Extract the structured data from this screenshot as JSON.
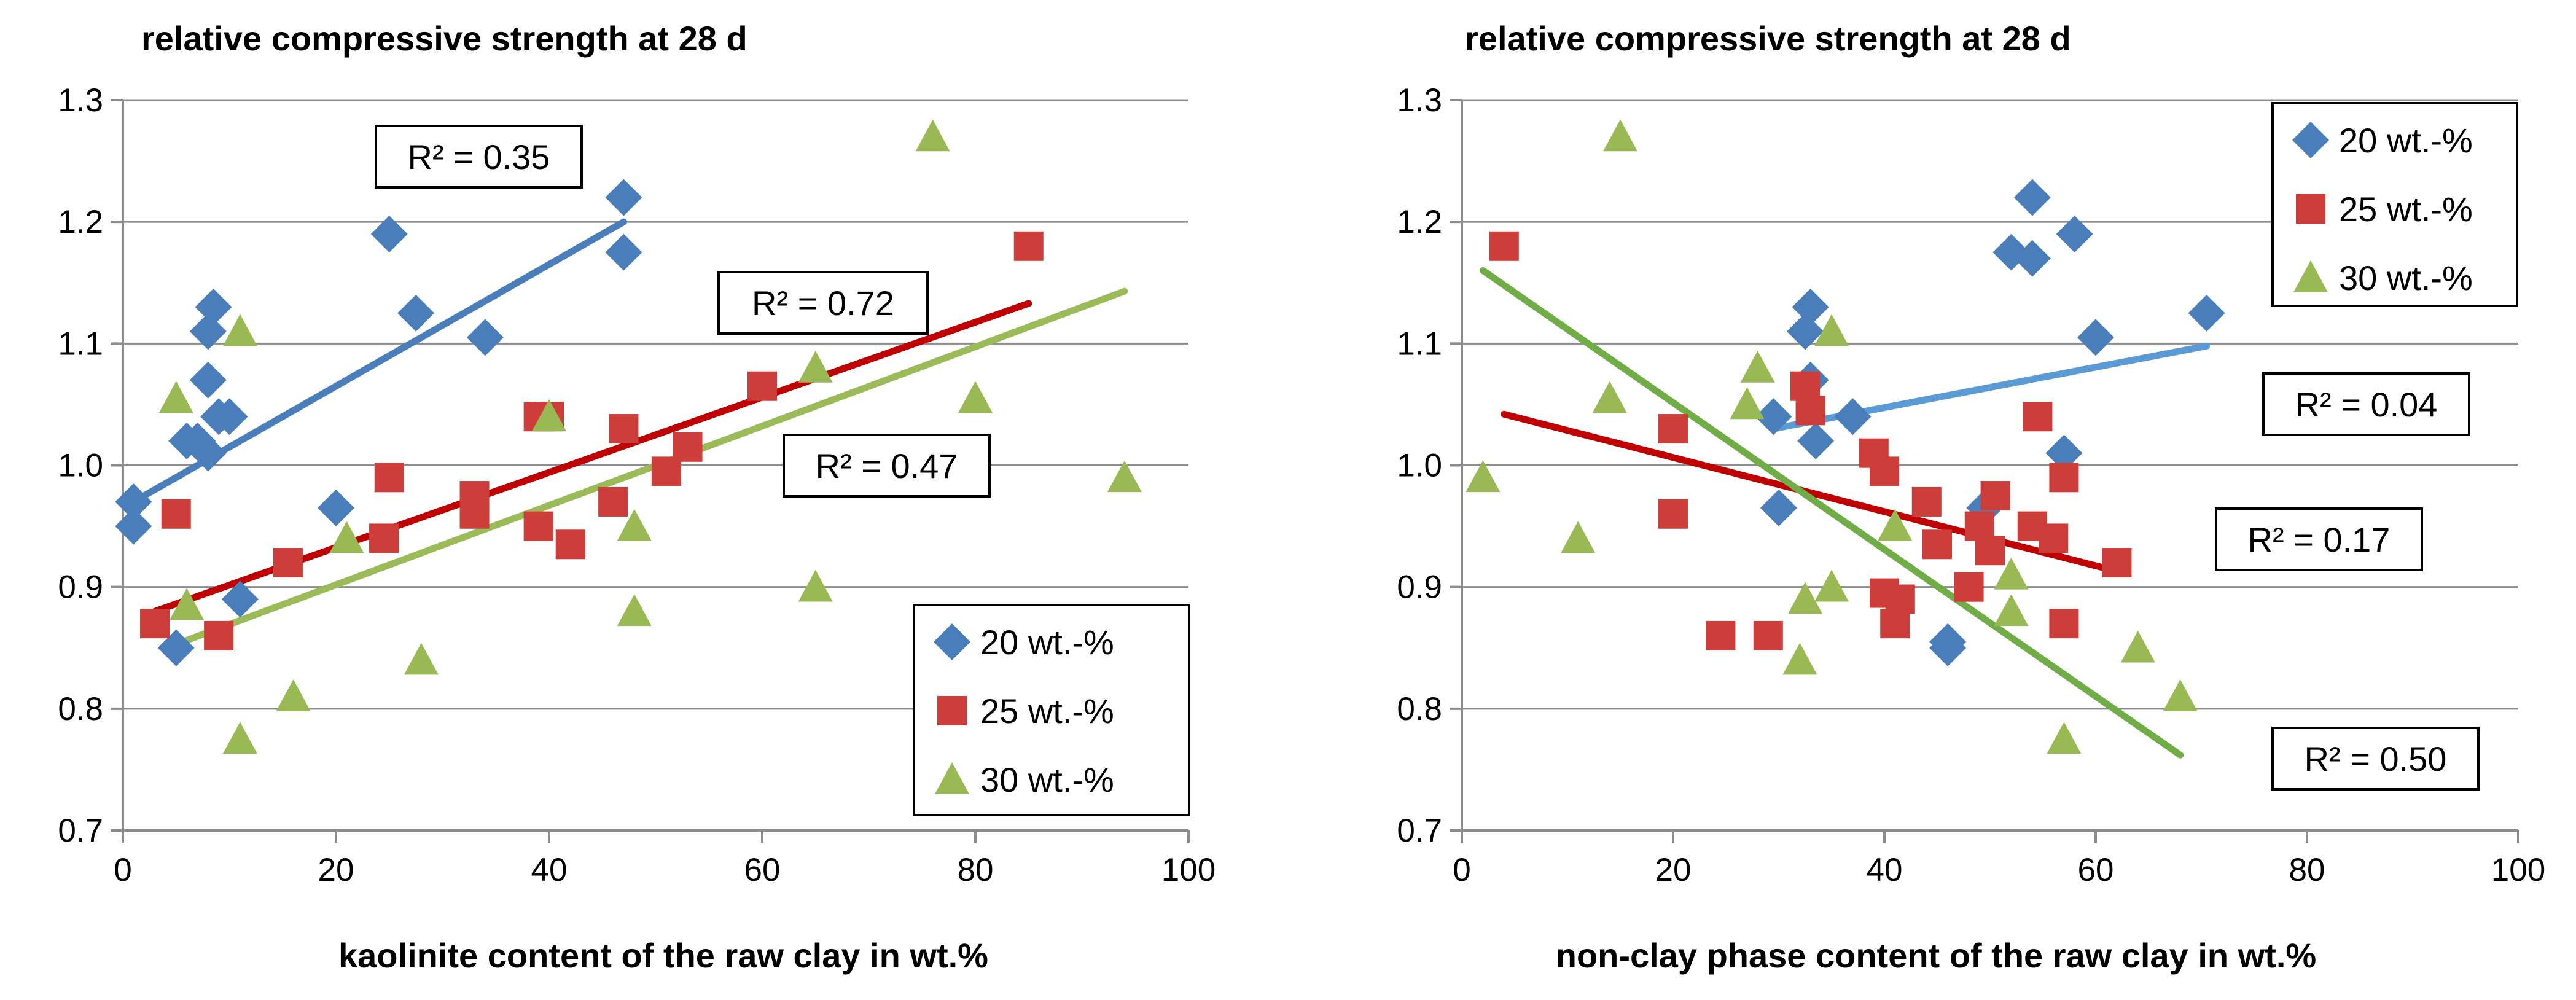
{
  "chart_data": [
    {
      "type": "scatter",
      "title": "relative compressive strength at 28 d",
      "xlabel": "kaolinite content of the raw clay in wt.%",
      "ylabel": "",
      "xlim": [
        0,
        100
      ],
      "ylim": [
        0.7,
        1.3
      ],
      "xticks": [
        "0",
        "20",
        "40",
        "60",
        "80",
        "100"
      ],
      "yticks": [
        "0.7",
        "0.8",
        "0.9",
        "1.0",
        "1.1",
        "1.2",
        "1.3"
      ],
      "grid": "horizontal",
      "legend_position": "bottom-right",
      "series": [
        {
          "name": "20 wt.-%",
          "color": "#4a7ebb",
          "marker": "diamond",
          "points": [
            [
              1,
              0.95
            ],
            [
              1,
              0.97
            ],
            [
              5,
              0.85
            ],
            [
              6,
              1.02
            ],
            [
              7,
              1.02
            ],
            [
              8,
              1.01
            ],
            [
              8,
              1.07
            ],
            [
              8,
              1.11
            ],
            [
              8.5,
              1.13
            ],
            [
              9,
              1.04
            ],
            [
              10,
              1.04
            ],
            [
              11,
              0.89
            ],
            [
              20,
              0.965
            ],
            [
              25,
              1.19
            ],
            [
              27.5,
              1.125
            ],
            [
              34,
              1.105
            ],
            [
              47,
              1.175
            ],
            [
              47,
              1.22
            ]
          ],
          "trend": {
            "x": [
              1,
              47
            ],
            "y": [
              0.97,
              1.2
            ],
            "label": "R² = 0.35",
            "color": "#4a7ebb"
          }
        },
        {
          "name": "25 wt.-%",
          "color": "#cd3e3a",
          "marker": "square",
          "points": [
            [
              3,
              0.87
            ],
            [
              5,
              0.96
            ],
            [
              9,
              0.86
            ],
            [
              15.5,
              0.92
            ],
            [
              24.5,
              0.94
            ],
            [
              25,
              0.99
            ],
            [
              33,
              0.96
            ],
            [
              33,
              0.975
            ],
            [
              39,
              1.04
            ],
            [
              39,
              0.95
            ],
            [
              40,
              1.04
            ],
            [
              42,
              0.935
            ],
            [
              46,
              0.97
            ],
            [
              47,
              1.03
            ],
            [
              51,
              0.995
            ],
            [
              53,
              1.015
            ],
            [
              60,
              1.065
            ],
            [
              85,
              1.18
            ]
          ],
          "trend": {
            "x": [
              3,
              85
            ],
            "y": [
              0.88,
              1.133
            ],
            "label": "R² = 0.72",
            "color": "#c00000"
          }
        },
        {
          "name": "30 wt.-%",
          "color": "#98b954",
          "marker": "triangle",
          "points": [
            [
              5,
              1.055
            ],
            [
              6,
              0.885
            ],
            [
              11,
              0.775
            ],
            [
              11,
              1.11
            ],
            [
              16,
              0.81
            ],
            [
              21,
              0.94
            ],
            [
              28,
              0.84
            ],
            [
              40,
              1.04
            ],
            [
              48,
              0.95
            ],
            [
              48,
              0.88
            ],
            [
              65,
              0.9
            ],
            [
              65,
              1.08
            ],
            [
              76,
              1.27
            ],
            [
              80,
              1.055
            ],
            [
              94,
              0.99
            ]
          ],
          "trend": {
            "x": [
              5,
              94
            ],
            "y": [
              0.853,
              1.143
            ],
            "label": "R² = 0.47",
            "color": "#9bbb59"
          }
        }
      ]
    },
    {
      "type": "scatter",
      "title": "relative compressive strength at 28 d",
      "xlabel": "non-clay phase content of the raw clay in wt.%",
      "ylabel": "",
      "xlim": [
        0,
        100
      ],
      "ylim": [
        0.7,
        1.3
      ],
      "xticks": [
        "0",
        "20",
        "40",
        "60",
        "80",
        "100"
      ],
      "yticks": [
        "0.7",
        "0.8",
        "0.9",
        "1.0",
        "1.1",
        "1.2",
        "1.3"
      ],
      "grid": "horizontal",
      "legend_position": "top-right",
      "series": [
        {
          "name": "20 wt.-%",
          "color": "#4a7ebb",
          "marker": "diamond",
          "points": [
            [
              29.5,
              1.04
            ],
            [
              30,
              0.965
            ],
            [
              32.5,
              1.11
            ],
            [
              33,
              1.13
            ],
            [
              33,
              1.07
            ],
            [
              33.5,
              1.02
            ],
            [
              37,
              1.04
            ],
            [
              46,
              0.85
            ],
            [
              46,
              0.855
            ],
            [
              49.5,
              0.965
            ],
            [
              52,
              1.175
            ],
            [
              54,
              1.17
            ],
            [
              54,
              1.22
            ],
            [
              58,
              1.19
            ],
            [
              60,
              1.105
            ],
            [
              57,
              1.01
            ],
            [
              70.5,
              1.125
            ]
          ],
          "trend": {
            "x": [
              29.5,
              70.5
            ],
            "y": [
              1.03,
              1.098
            ],
            "label": "R² = 0.04",
            "color": "#5b9bd5"
          }
        },
        {
          "name": "25 wt.-%",
          "color": "#cd3e3a",
          "marker": "square",
          "points": [
            [
              4,
              1.18
            ],
            [
              20,
              0.96
            ],
            [
              20,
              1.03
            ],
            [
              24.5,
              0.86
            ],
            [
              29,
              0.86
            ],
            [
              32.5,
              1.065
            ],
            [
              33,
              1.045
            ],
            [
              39,
              1.01
            ],
            [
              40,
              0.995
            ],
            [
              40,
              0.895
            ],
            [
              41,
              0.87
            ],
            [
              41.5,
              0.89
            ],
            [
              44,
              0.97
            ],
            [
              45,
              0.935
            ],
            [
              48,
              0.9
            ],
            [
              49,
              0.95
            ],
            [
              50,
              0.93
            ],
            [
              50.5,
              0.975
            ],
            [
              54,
              0.95
            ],
            [
              54.5,
              1.04
            ],
            [
              56,
              0.94
            ],
            [
              57,
              0.87
            ],
            [
              57,
              0.99
            ],
            [
              62,
              0.92
            ]
          ],
          "trend": {
            "x": [
              4,
              62
            ],
            "y": [
              1.042,
              0.913
            ],
            "label": "R² = 0.17",
            "color": "#c00000"
          }
        },
        {
          "name": "30 wt.-%",
          "color": "#98b954",
          "marker": "triangle",
          "points": [
            [
              2,
              0.99
            ],
            [
              11,
              0.94
            ],
            [
              14,
              1.055
            ],
            [
              15,
              1.27
            ],
            [
              27,
              1.05
            ],
            [
              28,
              1.08
            ],
            [
              32,
              0.84
            ],
            [
              32.5,
              0.89
            ],
            [
              35,
              0.9
            ],
            [
              35,
              1.11
            ],
            [
              41,
              0.95
            ],
            [
              52,
              0.91
            ],
            [
              52,
              0.88
            ],
            [
              57,
              0.775
            ],
            [
              64,
              0.85
            ],
            [
              68,
              0.81
            ]
          ],
          "trend": {
            "x": [
              2,
              68
            ],
            "y": [
              1.16,
              0.762
            ],
            "label": "R² = 0.50",
            "color": "#70ad47"
          }
        }
      ]
    }
  ]
}
